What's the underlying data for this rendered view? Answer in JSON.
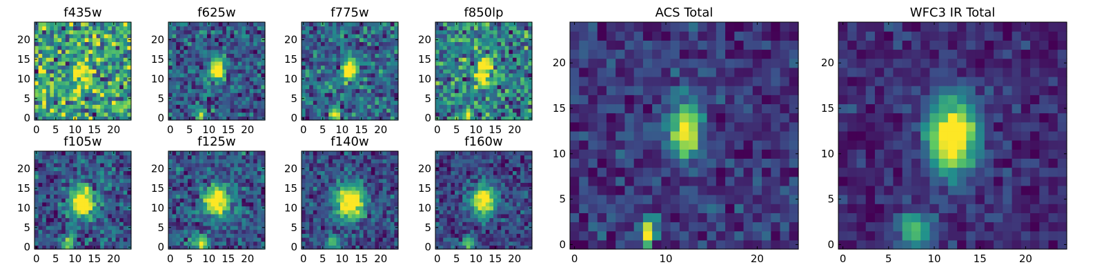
{
  "chart_data": [
    {
      "type": "heatmap",
      "title": "f435w",
      "grid_size": 25,
      "xticks": [
        0,
        5,
        10,
        15,
        20
      ],
      "yticks": [
        0,
        5,
        10,
        15,
        20
      ],
      "xlim": [
        -0.5,
        24.5
      ],
      "ylim": [
        -0.5,
        24.5
      ],
      "colormap": "viridis",
      "seed": 11,
      "noise": 0.95,
      "sources": [
        {
          "x": 12,
          "y": 12,
          "sx": 1.4,
          "sy": 2.2,
          "amp": 0.5
        }
      ]
    },
    {
      "type": "heatmap",
      "title": "f625w",
      "grid_size": 25,
      "xticks": [
        0,
        5,
        10,
        15,
        20
      ],
      "yticks": [
        0,
        5,
        10,
        15,
        20
      ],
      "xlim": [
        -0.5,
        24.5
      ],
      "ylim": [
        -0.5,
        24.5
      ],
      "colormap": "viridis",
      "seed": 23,
      "noise": 0.7,
      "sources": [
        {
          "x": 12,
          "y": 12.5,
          "sx": 1.3,
          "sy": 2.2,
          "amp": 1.0
        },
        {
          "x": 8,
          "y": 1,
          "sx": 0.8,
          "sy": 1.2,
          "amp": 0.7
        }
      ]
    },
    {
      "type": "heatmap",
      "title": "f775w",
      "grid_size": 25,
      "xticks": [
        0,
        5,
        10,
        15,
        20
      ],
      "yticks": [
        0,
        5,
        10,
        15,
        20
      ],
      "xlim": [
        -0.5,
        24.5
      ],
      "ylim": [
        -0.5,
        24.5
      ],
      "colormap": "viridis",
      "seed": 37,
      "noise": 0.75,
      "sources": [
        {
          "x": 12,
          "y": 12.5,
          "sx": 1.3,
          "sy": 2.0,
          "amp": 1.0
        },
        {
          "x": 8,
          "y": 1,
          "sx": 0.8,
          "sy": 1.2,
          "amp": 0.8
        }
      ]
    },
    {
      "type": "heatmap",
      "title": "f850lp",
      "grid_size": 25,
      "xticks": [
        0,
        5,
        10,
        15,
        20
      ],
      "yticks": [
        0,
        5,
        10,
        15,
        20
      ],
      "xlim": [
        -0.5,
        24.5
      ],
      "ylim": [
        -0.5,
        24.5
      ],
      "colormap": "viridis",
      "seed": 41,
      "noise": 0.85,
      "sources": [
        {
          "x": 12,
          "y": 12,
          "sx": 1.4,
          "sy": 2.2,
          "amp": 0.9
        },
        {
          "x": 8,
          "y": 1,
          "sx": 0.8,
          "sy": 1.2,
          "amp": 0.6
        }
      ]
    },
    {
      "type": "heatmap",
      "title": "f105w",
      "grid_size": 25,
      "xticks": [
        0,
        5,
        10,
        15,
        20
      ],
      "yticks": [
        0,
        5,
        10,
        15,
        20
      ],
      "xlim": [
        -0.5,
        24.5
      ],
      "ylim": [
        -0.5,
        24.5
      ],
      "colormap": "viridis",
      "seed": 53,
      "noise": 0.55,
      "sources": [
        {
          "x": 12,
          "y": 11.5,
          "sx": 2.2,
          "sy": 2.6,
          "amp": 1.0
        },
        {
          "x": 8,
          "y": 1,
          "sx": 1.2,
          "sy": 1.5,
          "amp": 0.6
        }
      ]
    },
    {
      "type": "heatmap",
      "title": "f125w",
      "grid_size": 25,
      "xticks": [
        0,
        5,
        10,
        15,
        20
      ],
      "yticks": [
        0,
        5,
        10,
        15,
        20
      ],
      "xlim": [
        -0.5,
        24.5
      ],
      "ylim": [
        -0.5,
        24.5
      ],
      "colormap": "viridis",
      "seed": 67,
      "noise": 0.55,
      "sources": [
        {
          "x": 12,
          "y": 12,
          "sx": 2.2,
          "sy": 2.6,
          "amp": 1.0
        },
        {
          "x": 8,
          "y": 1,
          "sx": 1.2,
          "sy": 1.5,
          "amp": 0.7
        }
      ]
    },
    {
      "type": "heatmap",
      "title": "f140w",
      "grid_size": 25,
      "xticks": [
        0,
        5,
        10,
        15,
        20
      ],
      "yticks": [
        0,
        5,
        10,
        15,
        20
      ],
      "xlim": [
        -0.5,
        24.5
      ],
      "ylim": [
        -0.5,
        24.5
      ],
      "colormap": "viridis",
      "seed": 79,
      "noise": 0.5,
      "sources": [
        {
          "x": 12,
          "y": 11.5,
          "sx": 2.6,
          "sy": 3.0,
          "amp": 1.0
        },
        {
          "x": 8,
          "y": 1,
          "sx": 1.3,
          "sy": 1.5,
          "amp": 0.5
        }
      ]
    },
    {
      "type": "heatmap",
      "title": "f160w",
      "grid_size": 25,
      "xticks": [
        0,
        5,
        10,
        15,
        20
      ],
      "yticks": [
        0,
        5,
        10,
        15,
        20
      ],
      "xlim": [
        -0.5,
        24.5
      ],
      "ylim": [
        -0.5,
        24.5
      ],
      "colormap": "viridis",
      "seed": 83,
      "noise": 0.5,
      "sources": [
        {
          "x": 12,
          "y": 12,
          "sx": 2.2,
          "sy": 2.6,
          "amp": 1.0
        },
        {
          "x": 8,
          "y": 1,
          "sx": 1.2,
          "sy": 1.5,
          "amp": 0.5
        }
      ]
    },
    {
      "type": "heatmap",
      "title": "ACS Total",
      "grid_size": 25,
      "xticks": [
        0,
        10,
        20
      ],
      "yticks": [
        0,
        5,
        10,
        15,
        20
      ],
      "xlim": [
        -0.5,
        24.5
      ],
      "ylim": [
        -0.5,
        24.5
      ],
      "colormap": "viridis",
      "seed": 97,
      "noise": 0.45,
      "sources": [
        {
          "x": 12,
          "y": 12.5,
          "sx": 1.1,
          "sy": 2.0,
          "amp": 1.1
        },
        {
          "x": 8,
          "y": 1,
          "sx": 0.6,
          "sy": 1.2,
          "amp": 1.0
        }
      ]
    },
    {
      "type": "heatmap",
      "title": "WFC3 IR Total",
      "grid_size": 25,
      "xticks": [
        0,
        5,
        10,
        15,
        20
      ],
      "yticks": [
        0,
        5,
        10,
        15,
        20
      ],
      "xlim": [
        -0.5,
        24.5
      ],
      "ylim": [
        -0.5,
        24.5
      ],
      "colormap": "viridis",
      "seed": 109,
      "noise": 0.28,
      "sources": [
        {
          "x": 12,
          "y": 12,
          "sx": 1.9,
          "sy": 2.8,
          "amp": 1.0
        },
        {
          "x": 8,
          "y": 1.5,
          "sx": 1.3,
          "sy": 1.3,
          "amp": 0.55
        }
      ]
    }
  ]
}
